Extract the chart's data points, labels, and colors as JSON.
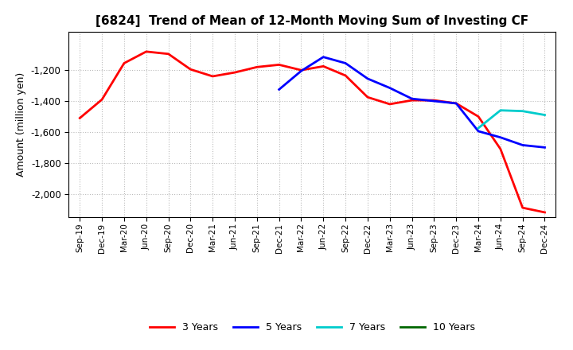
{
  "title": "[6824]  Trend of Mean of 12-Month Moving Sum of Investing CF",
  "ylabel": "Amount (million yen)",
  "background_color": "#ffffff",
  "grid_color": "#bbbbbb",
  "ylim": [
    -2150,
    -950
  ],
  "yticks": [
    -2000,
    -1800,
    -1600,
    -1400,
    -1200
  ],
  "series": {
    "3 Years": {
      "color": "#ff0000",
      "dates": [
        "Sep-19",
        "Dec-19",
        "Mar-20",
        "Jun-20",
        "Sep-20",
        "Dec-20",
        "Mar-21",
        "Jun-21",
        "Sep-21",
        "Dec-21",
        "Mar-22",
        "Jun-22",
        "Sep-22",
        "Dec-22",
        "Mar-23",
        "Jun-23",
        "Sep-23",
        "Dec-23",
        "Mar-24",
        "Jun-24",
        "Sep-24",
        "Dec-24"
      ],
      "values": [
        -1510,
        -1390,
        -1155,
        -1080,
        -1095,
        -1195,
        -1240,
        -1215,
        -1180,
        -1165,
        -1200,
        -1175,
        -1235,
        -1375,
        -1420,
        -1395,
        -1395,
        -1415,
        -1500,
        -1710,
        -2090,
        -2120
      ]
    },
    "5 Years": {
      "color": "#0000ff",
      "dates": [
        "Dec-21",
        "Mar-22",
        "Jun-22",
        "Sep-22",
        "Dec-22",
        "Mar-23",
        "Jun-23",
        "Sep-23",
        "Dec-23",
        "Mar-24",
        "Jun-24",
        "Sep-24",
        "Dec-24"
      ],
      "values": [
        -1325,
        -1205,
        -1115,
        -1155,
        -1255,
        -1315,
        -1385,
        -1400,
        -1415,
        -1595,
        -1635,
        -1685,
        -1700
      ]
    },
    "7 Years": {
      "color": "#00cccc",
      "dates": [
        "Mar-24",
        "Jun-24",
        "Sep-24",
        "Dec-24"
      ],
      "values": [
        -1575,
        -1460,
        -1465,
        -1490
      ]
    },
    "10 Years": {
      "color": "#006600",
      "dates": [],
      "values": []
    }
  },
  "xtick_labels": [
    "Sep-19",
    "Dec-19",
    "Mar-20",
    "Jun-20",
    "Sep-20",
    "Dec-20",
    "Mar-21",
    "Jun-21",
    "Sep-21",
    "Dec-21",
    "Mar-22",
    "Jun-22",
    "Sep-22",
    "Dec-22",
    "Mar-23",
    "Jun-23",
    "Sep-23",
    "Dec-23",
    "Mar-24",
    "Jun-24",
    "Sep-24",
    "Dec-24"
  ],
  "legend_entries": [
    "3 Years",
    "5 Years",
    "7 Years",
    "10 Years"
  ]
}
